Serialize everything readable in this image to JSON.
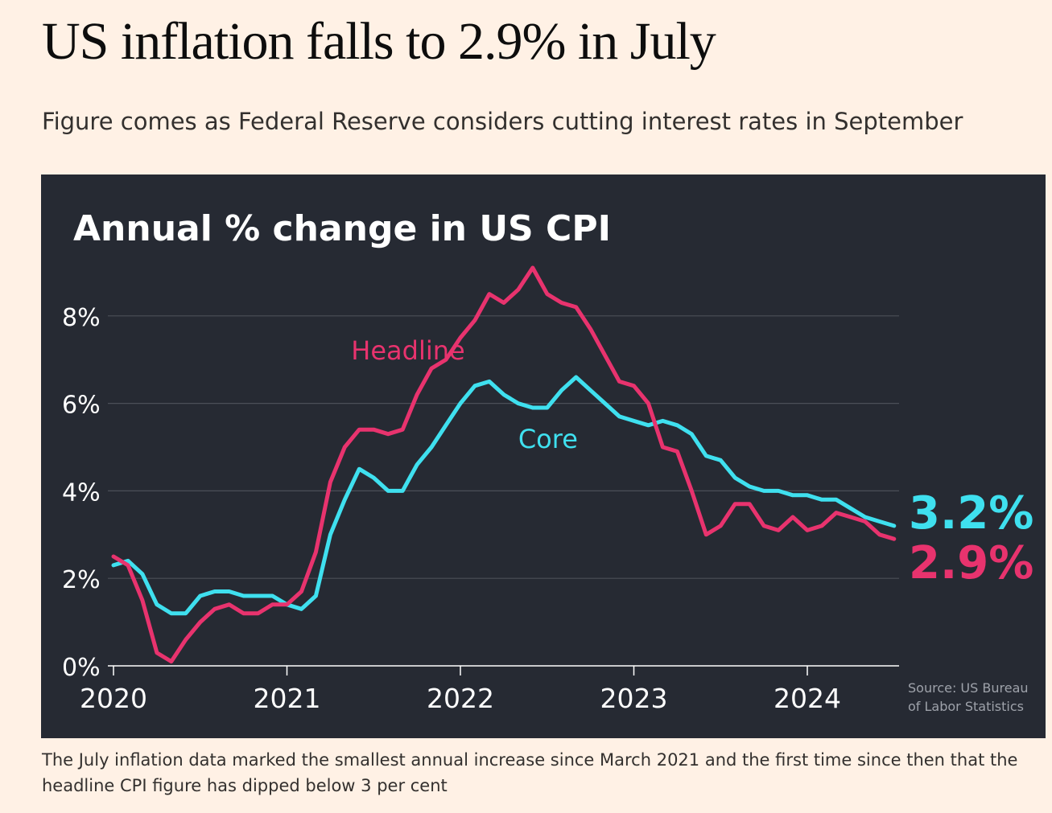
{
  "article": {
    "headline": "US inflation falls to 2.9% in July",
    "standfirst": "Figure comes as Federal Reserve considers cutting interest rates in September",
    "caption": "The July inflation data marked the smallest annual increase since March 2021 and the first time since then that the headline CPI figure has dipped below 3 per cent"
  },
  "chart_data": {
    "type": "line",
    "title": "Annual % change in US CPI",
    "source": "Source: US Bureau of Labor Statistics",
    "x_ticks": [
      "2020",
      "2021",
      "2022",
      "2023",
      "2024"
    ],
    "y_ticks": [
      "0%",
      "2%",
      "4%",
      "6%",
      "8%"
    ],
    "ylim": [
      0,
      9.1
    ],
    "grid": true,
    "series": [
      {
        "name": "Headline",
        "color": "#e8336e",
        "end_label": "2.9%",
        "x": [
          "2020-01",
          "2020-02",
          "2020-03",
          "2020-04",
          "2020-05",
          "2020-06",
          "2020-07",
          "2020-08",
          "2020-09",
          "2020-10",
          "2020-11",
          "2020-12",
          "2021-01",
          "2021-02",
          "2021-03",
          "2021-04",
          "2021-05",
          "2021-06",
          "2021-07",
          "2021-08",
          "2021-09",
          "2021-10",
          "2021-11",
          "2021-12",
          "2022-01",
          "2022-02",
          "2022-03",
          "2022-04",
          "2022-05",
          "2022-06",
          "2022-07",
          "2022-08",
          "2022-09",
          "2022-10",
          "2022-11",
          "2022-12",
          "2023-01",
          "2023-02",
          "2023-03",
          "2023-04",
          "2023-05",
          "2023-06",
          "2023-07",
          "2023-08",
          "2023-09",
          "2023-10",
          "2023-11",
          "2023-12",
          "2024-01",
          "2024-02",
          "2024-03",
          "2024-04",
          "2024-05",
          "2024-06",
          "2024-07"
        ],
        "values": [
          2.5,
          2.3,
          1.5,
          0.3,
          0.1,
          0.6,
          1.0,
          1.3,
          1.4,
          1.2,
          1.2,
          1.4,
          1.4,
          1.7,
          2.6,
          4.2,
          5.0,
          5.4,
          5.4,
          5.3,
          5.4,
          6.2,
          6.8,
          7.0,
          7.5,
          7.9,
          8.5,
          8.3,
          8.6,
          9.1,
          8.5,
          8.3,
          8.2,
          7.7,
          7.1,
          6.5,
          6.4,
          6.0,
          5.0,
          4.9,
          4.0,
          3.0,
          3.2,
          3.7,
          3.7,
          3.2,
          3.1,
          3.4,
          3.1,
          3.2,
          3.5,
          3.4,
          3.3,
          3.0,
          2.9
        ]
      },
      {
        "name": "Core",
        "color": "#3fe0ef",
        "end_label": "3.2%",
        "x": [
          "2020-01",
          "2020-02",
          "2020-03",
          "2020-04",
          "2020-05",
          "2020-06",
          "2020-07",
          "2020-08",
          "2020-09",
          "2020-10",
          "2020-11",
          "2020-12",
          "2021-01",
          "2021-02",
          "2021-03",
          "2021-04",
          "2021-05",
          "2021-06",
          "2021-07",
          "2021-08",
          "2021-09",
          "2021-10",
          "2021-11",
          "2021-12",
          "2022-01",
          "2022-02",
          "2022-03",
          "2022-04",
          "2022-05",
          "2022-06",
          "2022-07",
          "2022-08",
          "2022-09",
          "2022-10",
          "2022-11",
          "2022-12",
          "2023-01",
          "2023-02",
          "2023-03",
          "2023-04",
          "2023-05",
          "2023-06",
          "2023-07",
          "2023-08",
          "2023-09",
          "2023-10",
          "2023-11",
          "2023-12",
          "2024-01",
          "2024-02",
          "2024-03",
          "2024-04",
          "2024-05",
          "2024-06",
          "2024-07"
        ],
        "values": [
          2.3,
          2.4,
          2.1,
          1.4,
          1.2,
          1.2,
          1.6,
          1.7,
          1.7,
          1.6,
          1.6,
          1.6,
          1.4,
          1.3,
          1.6,
          3.0,
          3.8,
          4.5,
          4.3,
          4.0,
          4.0,
          4.6,
          5.0,
          5.5,
          6.0,
          6.4,
          6.5,
          6.2,
          6.0,
          5.9,
          5.9,
          6.3,
          6.6,
          6.3,
          6.0,
          5.7,
          5.6,
          5.5,
          5.6,
          5.5,
          5.3,
          4.8,
          4.7,
          4.3,
          4.1,
          4.0,
          4.0,
          3.9,
          3.9,
          3.8,
          3.8,
          3.6,
          3.4,
          3.3,
          3.2
        ]
      }
    ]
  }
}
